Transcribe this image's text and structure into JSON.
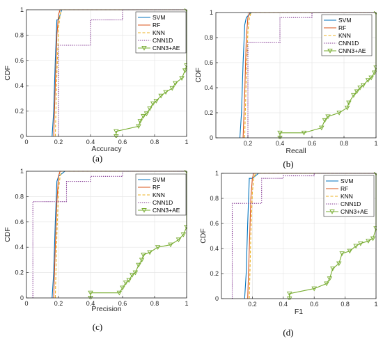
{
  "chart_data": [
    {
      "type": "line",
      "panel": "a",
      "caption": "(a)",
      "xlabel": "Accuracy",
      "ylabel": "CDF",
      "xlim": [
        0,
        1
      ],
      "ylim": [
        0,
        1
      ],
      "xticks": [
        "0",
        "0.2",
        "0.4",
        "0.6",
        "0.8",
        "1"
      ],
      "yticks": [
        "0",
        "0.2",
        "0.4",
        "0.6",
        "0.8",
        "1"
      ],
      "grid": true,
      "legend": "top-right",
      "series": [
        {
          "name": "SVM",
          "x": [
            0.16,
            0.17,
            0.18,
            0.19,
            0.2,
            0.22,
            1
          ],
          "y": [
            0,
            0.2,
            0.6,
            0.92,
            0.92,
            1,
            1
          ]
        },
        {
          "name": "RF",
          "x": [
            0.17,
            0.18,
            0.19,
            0.2,
            0.21,
            1
          ],
          "y": [
            0,
            0.4,
            0.8,
            0.96,
            1,
            1
          ]
        },
        {
          "name": "KNN",
          "x": [
            0.18,
            0.19,
            0.2,
            0.21,
            0.22,
            1
          ],
          "y": [
            0,
            0.5,
            0.85,
            0.96,
            1,
            1
          ]
        },
        {
          "name": "CNN1D",
          "x": [
            0.2,
            0.2,
            0.4,
            0.4,
            0.6,
            0.6,
            1
          ],
          "y": [
            0,
            0.72,
            0.72,
            0.92,
            0.92,
            1,
            1
          ]
        },
        {
          "name": "CNN3+AE",
          "x": [
            0.56,
            0.56,
            0.7,
            0.71,
            0.73,
            0.75,
            0.77,
            0.79,
            0.81,
            0.84,
            0.87,
            0.91,
            0.93,
            0.97,
            0.99,
            1,
            1
          ],
          "y": [
            0,
            0.04,
            0.08,
            0.12,
            0.16,
            0.18,
            0.22,
            0.26,
            0.28,
            0.32,
            0.35,
            0.38,
            0.42,
            0.46,
            0.52,
            0.56,
            1
          ]
        }
      ]
    },
    {
      "type": "line",
      "panel": "b",
      "caption": "(b)",
      "xlabel": "Recall",
      "ylabel": "CDF",
      "xlim": [
        0,
        1
      ],
      "ylim": [
        0,
        1
      ],
      "xticks": [
        "0.2",
        "0.4",
        "0.6",
        "0.8",
        "1"
      ],
      "yticks": [
        "0",
        "0.2",
        "0.4",
        "0.6",
        "0.8",
        "1"
      ],
      "grid": true,
      "legend": "top-right",
      "series": [
        {
          "name": "SVM",
          "x": [
            0.15,
            0.16,
            0.17,
            0.18,
            0.19,
            0.22,
            1
          ],
          "y": [
            0,
            0.2,
            0.6,
            0.9,
            0.96,
            1,
            1
          ]
        },
        {
          "name": "RF",
          "x": [
            0.17,
            0.18,
            0.19,
            0.2,
            0.21,
            1
          ],
          "y": [
            0,
            0.35,
            0.8,
            0.96,
            1,
            1
          ]
        },
        {
          "name": "KNN",
          "x": [
            0.18,
            0.19,
            0.2,
            0.21,
            0.22,
            1
          ],
          "y": [
            0,
            0.5,
            0.85,
            0.96,
            1,
            1
          ]
        },
        {
          "name": "CNN1D",
          "x": [
            0.2,
            0.2,
            0.4,
            0.4,
            0.6,
            0.6,
            1
          ],
          "y": [
            0,
            0.76,
            0.76,
            0.96,
            0.96,
            1,
            1
          ]
        },
        {
          "name": "CNN3+AE",
          "x": [
            0.4,
            0.4,
            0.55,
            0.66,
            0.68,
            0.7,
            0.77,
            0.82,
            0.83,
            0.86,
            0.88,
            0.9,
            0.92,
            0.95,
            0.97,
            0.99,
            1,
            1
          ],
          "y": [
            0,
            0.04,
            0.04,
            0.08,
            0.14,
            0.17,
            0.2,
            0.24,
            0.28,
            0.34,
            0.37,
            0.4,
            0.42,
            0.46,
            0.48,
            0.52,
            0.56,
            1
          ]
        }
      ]
    },
    {
      "type": "line",
      "panel": "c",
      "caption": "(c)",
      "xlabel": "Precision",
      "ylabel": "CDF",
      "xlim": [
        0,
        1
      ],
      "ylim": [
        0,
        1
      ],
      "xticks": [
        "0",
        "0.2",
        "0.4",
        "0.6",
        "0.8",
        "1"
      ],
      "yticks": [
        "0",
        "0.2",
        "0.4",
        "0.6",
        "0.8",
        "1"
      ],
      "grid": true,
      "legend": "top-right",
      "series": [
        {
          "name": "SVM",
          "x": [
            0.16,
            0.17,
            0.18,
            0.19,
            0.2,
            0.24,
            1
          ],
          "y": [
            0,
            0.2,
            0.6,
            0.92,
            0.96,
            1,
            1
          ]
        },
        {
          "name": "RF",
          "x": [
            0.17,
            0.18,
            0.19,
            0.2,
            0.21,
            1
          ],
          "y": [
            0,
            0.4,
            0.76,
            0.96,
            1,
            1
          ]
        },
        {
          "name": "KNN",
          "x": [
            0.18,
            0.19,
            0.2,
            0.21,
            0.22,
            1
          ],
          "y": [
            0,
            0.5,
            0.85,
            0.96,
            1,
            1
          ]
        },
        {
          "name": "CNN1D",
          "x": [
            0.04,
            0.04,
            0.25,
            0.25,
            0.4,
            0.4,
            0.6,
            0.6,
            1
          ],
          "y": [
            0,
            0.76,
            0.76,
            0.92,
            0.92,
            0.96,
            0.96,
            1,
            1
          ]
        },
        {
          "name": "CNN3+AE",
          "x": [
            0.4,
            0.4,
            0.58,
            0.6,
            0.62,
            0.64,
            0.66,
            0.68,
            0.7,
            0.72,
            0.73,
            0.77,
            0.82,
            0.9,
            0.95,
            0.98,
            1,
            1
          ],
          "y": [
            0,
            0.04,
            0.04,
            0.08,
            0.12,
            0.14,
            0.18,
            0.2,
            0.26,
            0.3,
            0.34,
            0.36,
            0.4,
            0.42,
            0.46,
            0.5,
            0.56,
            1
          ]
        }
      ]
    },
    {
      "type": "line",
      "panel": "d",
      "caption": "(d)",
      "xlabel": "F1",
      "ylabel": "CDF",
      "xlim": [
        0,
        1
      ],
      "ylim": [
        0,
        1
      ],
      "xticks": [
        "0.2",
        "0.4",
        "0.6",
        "0.8",
        "1"
      ],
      "yticks": [
        "0",
        "0.2",
        "0.4",
        "0.6",
        "0.8",
        "1"
      ],
      "grid": true,
      "legend": "top-right",
      "series": [
        {
          "name": "SVM",
          "x": [
            0.15,
            0.16,
            0.17,
            0.18,
            0.2,
            0.24,
            1
          ],
          "y": [
            0,
            0.2,
            0.6,
            0.96,
            0.96,
            1,
            1
          ]
        },
        {
          "name": "RF",
          "x": [
            0.17,
            0.18,
            0.19,
            0.2,
            0.21,
            1
          ],
          "y": [
            0,
            0.4,
            0.8,
            0.96,
            1,
            1
          ]
        },
        {
          "name": "KNN",
          "x": [
            0.18,
            0.19,
            0.2,
            0.21,
            0.22,
            1
          ],
          "y": [
            0,
            0.5,
            0.85,
            0.96,
            1,
            1
          ]
        },
        {
          "name": "CNN1D",
          "x": [
            0.07,
            0.07,
            0.26,
            0.26,
            0.4,
            0.4,
            0.6,
            0.6,
            1
          ],
          "y": [
            0,
            0.76,
            0.76,
            0.96,
            0.96,
            0.98,
            0.98,
            1,
            1
          ]
        },
        {
          "name": "CNN3+AE",
          "x": [
            0.44,
            0.44,
            0.6,
            0.68,
            0.7,
            0.72,
            0.76,
            0.78,
            0.83,
            0.87,
            0.9,
            0.95,
            0.98,
            1,
            1
          ],
          "y": [
            0,
            0.04,
            0.08,
            0.12,
            0.16,
            0.24,
            0.28,
            0.36,
            0.38,
            0.42,
            0.44,
            0.46,
            0.48,
            0.56,
            1
          ]
        }
      ]
    }
  ],
  "styles": {
    "series_colors": {
      "SVM": "#0072bd",
      "RF": "#d95319",
      "KNN": "#edb120",
      "CNN1D": "#7e2f8e",
      "CNN3+AE": "#77ac30"
    },
    "series_dash": {
      "SVM": "solid",
      "RF": "solid",
      "KNN": "dashed",
      "CNN1D": "dotted",
      "CNN3+AE": "solid-triangle-markers"
    }
  }
}
